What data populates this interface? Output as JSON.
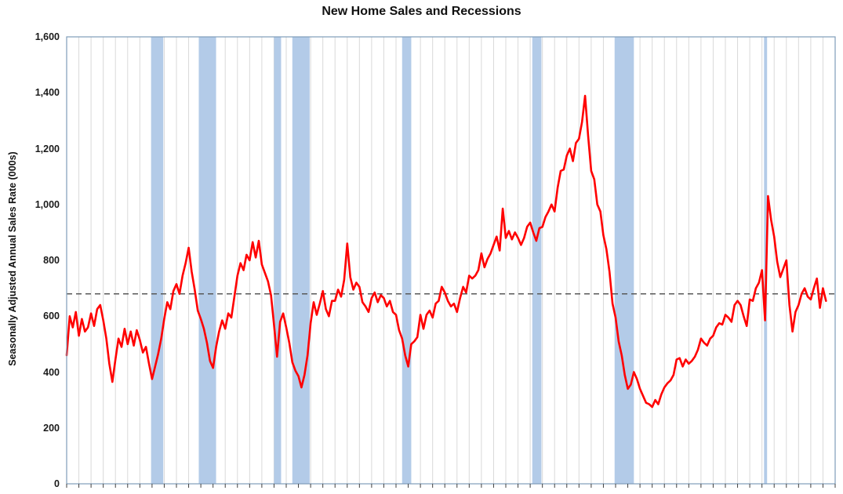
{
  "chart_data": {
    "type": "line",
    "title": "New Home Sales and Recessions",
    "xlabel": "",
    "ylabel": "Seasonally Adjusted Annual Sales Rate (000s)",
    "x_range": [
      1963,
      2026
    ],
    "ylim": [
      0,
      1600
    ],
    "y_ticks": [
      0,
      200,
      400,
      600,
      800,
      1000,
      1200,
      1400,
      1600
    ],
    "y_tick_labels": [
      "0",
      "200",
      "400",
      "600",
      "800",
      "1,000",
      "1,200",
      "1,400",
      "1,600"
    ],
    "grid": {
      "vertical_interval_years": 1,
      "horizontal": false
    },
    "legend_position": "none",
    "colors": {
      "sales_line": "#ff0000",
      "recession_band": "#b3cbe8",
      "reference_line": "#595959"
    },
    "reference_line": {
      "value": 680,
      "style": "dashed"
    },
    "recessions": [
      [
        1969.92,
        1970.92
      ],
      [
        1973.83,
        1975.25
      ],
      [
        1980.0,
        1980.58
      ],
      [
        1981.5,
        1982.92
      ],
      [
        1990.5,
        1991.25
      ],
      [
        2001.17,
        2001.92
      ],
      [
        2007.92,
        2009.5
      ],
      [
        2020.17,
        2020.42
      ]
    ],
    "series": [
      {
        "name": "New Home Sales (SAAR, thousands)",
        "x_start": 1963.0,
        "x_step": 0.25,
        "values": [
          460,
          600,
          560,
          615,
          530,
          590,
          545,
          560,
          610,
          565,
          625,
          640,
          585,
          520,
          430,
          365,
          445,
          520,
          490,
          555,
          500,
          545,
          495,
          550,
          515,
          470,
          490,
          430,
          375,
          420,
          465,
          520,
          590,
          650,
          625,
          690,
          715,
          680,
          745,
          790,
          845,
          760,
          695,
          620,
          590,
          555,
          505,
          440,
          415,
          490,
          545,
          585,
          555,
          610,
          595,
          670,
          745,
          790,
          765,
          820,
          800,
          865,
          810,
          870,
          785,
          755,
          725,
          675,
          570,
          455,
          580,
          610,
          560,
          505,
          435,
          405,
          385,
          345,
          390,
          460,
          575,
          650,
          605,
          645,
          690,
          625,
          600,
          655,
          655,
          695,
          670,
          730,
          860,
          740,
          695,
          720,
          705,
          650,
          635,
          615,
          665,
          685,
          650,
          675,
          665,
          635,
          655,
          615,
          605,
          550,
          520,
          460,
          420,
          500,
          510,
          525,
          605,
          555,
          605,
          620,
          595,
          645,
          655,
          705,
          685,
          655,
          635,
          645,
          615,
          665,
          705,
          685,
          745,
          735,
          745,
          765,
          825,
          775,
          805,
          825,
          855,
          885,
          835,
          985,
          880,
          905,
          875,
          900,
          880,
          855,
          880,
          920,
          935,
          900,
          870,
          915,
          920,
          955,
          975,
          1000,
          975,
          1060,
          1120,
          1125,
          1175,
          1200,
          1155,
          1220,
          1235,
          1295,
          1389,
          1245,
          1120,
          1090,
          1000,
          975,
          890,
          840,
          760,
          645,
          595,
          510,
          460,
          390,
          340,
          355,
          400,
          375,
          340,
          315,
          290,
          285,
          275,
          300,
          285,
          320,
          345,
          360,
          370,
          390,
          445,
          450,
          420,
          445,
          430,
          440,
          455,
          480,
          520,
          505,
          495,
          520,
          530,
          560,
          575,
          570,
          605,
          595,
          580,
          640,
          655,
          640,
          600,
          565,
          660,
          655,
          700,
          720,
          765,
          585,
          1030,
          945,
          885,
          795,
          740,
          770,
          800,
          640,
          545,
          615,
          640,
          680,
          700,
          670,
          660,
          700,
          735,
          630,
          700,
          655
        ]
      }
    ]
  }
}
